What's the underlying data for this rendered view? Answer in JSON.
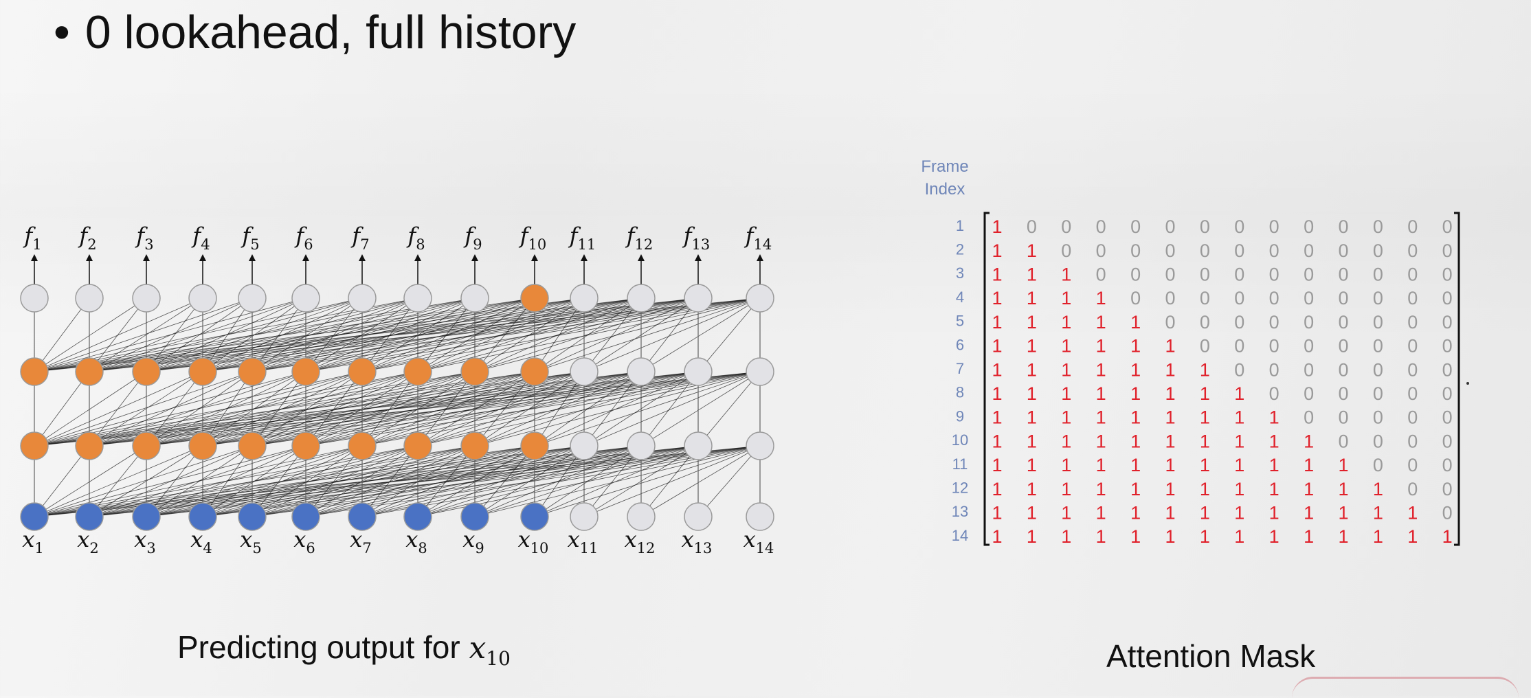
{
  "slide": {
    "bullet_symbol": "•",
    "bullet_text": "0 lookahead, full history",
    "left_caption_text": "Predicting output for ",
    "left_caption_math_base": "x",
    "left_caption_math_sub": "10",
    "right_caption": "Attention Mask",
    "frame_index_label_line1": "Frame",
    "frame_index_label_line2": "Index"
  },
  "diagram": {
    "num_frames": 14,
    "output_symbol": "f",
    "input_symbol": "x",
    "frame_numbers": [
      "1",
      "2",
      "3",
      "4",
      "5",
      "6",
      "7",
      "8",
      "9",
      "10",
      "11",
      "12",
      "13",
      "14"
    ],
    "target_frame": 10,
    "lookahead": 0,
    "history": "full",
    "rows": [
      {
        "name": "output",
        "active_count": 1,
        "active_frame": 10
      },
      {
        "name": "hidden-2",
        "active_count": 10
      },
      {
        "name": "hidden-1",
        "active_count": 10
      },
      {
        "name": "input",
        "active_count": 10
      }
    ],
    "colors": {
      "input_active": "#4a72c4",
      "hidden_active": "#e8883a",
      "inactive": "#e2e2e6",
      "node_stroke": "#9a9a9a",
      "edge": "#1a1a1a"
    }
  },
  "mask": {
    "row_labels": [
      "1",
      "2",
      "3",
      "4",
      "5",
      "6",
      "7",
      "8",
      "9",
      "10",
      "11",
      "12",
      "13",
      "14"
    ],
    "matrix": [
      [
        1,
        0,
        0,
        0,
        0,
        0,
        0,
        0,
        0,
        0,
        0,
        0,
        0,
        0
      ],
      [
        1,
        1,
        0,
        0,
        0,
        0,
        0,
        0,
        0,
        0,
        0,
        0,
        0,
        0
      ],
      [
        1,
        1,
        1,
        0,
        0,
        0,
        0,
        0,
        0,
        0,
        0,
        0,
        0,
        0
      ],
      [
        1,
        1,
        1,
        1,
        0,
        0,
        0,
        0,
        0,
        0,
        0,
        0,
        0,
        0
      ],
      [
        1,
        1,
        1,
        1,
        1,
        0,
        0,
        0,
        0,
        0,
        0,
        0,
        0,
        0
      ],
      [
        1,
        1,
        1,
        1,
        1,
        1,
        0,
        0,
        0,
        0,
        0,
        0,
        0,
        0
      ],
      [
        1,
        1,
        1,
        1,
        1,
        1,
        1,
        0,
        0,
        0,
        0,
        0,
        0,
        0
      ],
      [
        1,
        1,
        1,
        1,
        1,
        1,
        1,
        1,
        0,
        0,
        0,
        0,
        0,
        0
      ],
      [
        1,
        1,
        1,
        1,
        1,
        1,
        1,
        1,
        1,
        0,
        0,
        0,
        0,
        0
      ],
      [
        1,
        1,
        1,
        1,
        1,
        1,
        1,
        1,
        1,
        1,
        0,
        0,
        0,
        0
      ],
      [
        1,
        1,
        1,
        1,
        1,
        1,
        1,
        1,
        1,
        1,
        1,
        0,
        0,
        0
      ],
      [
        1,
        1,
        1,
        1,
        1,
        1,
        1,
        1,
        1,
        1,
        1,
        1,
        0,
        0
      ],
      [
        1,
        1,
        1,
        1,
        1,
        1,
        1,
        1,
        1,
        1,
        1,
        1,
        1,
        0
      ],
      [
        1,
        1,
        1,
        1,
        1,
        1,
        1,
        1,
        1,
        1,
        1,
        1,
        1,
        1
      ]
    ],
    "colors": {
      "one": "#e0202a",
      "zero": "#9a9a9a",
      "row_label": "#6f86b8",
      "bracket": "#111111"
    }
  }
}
